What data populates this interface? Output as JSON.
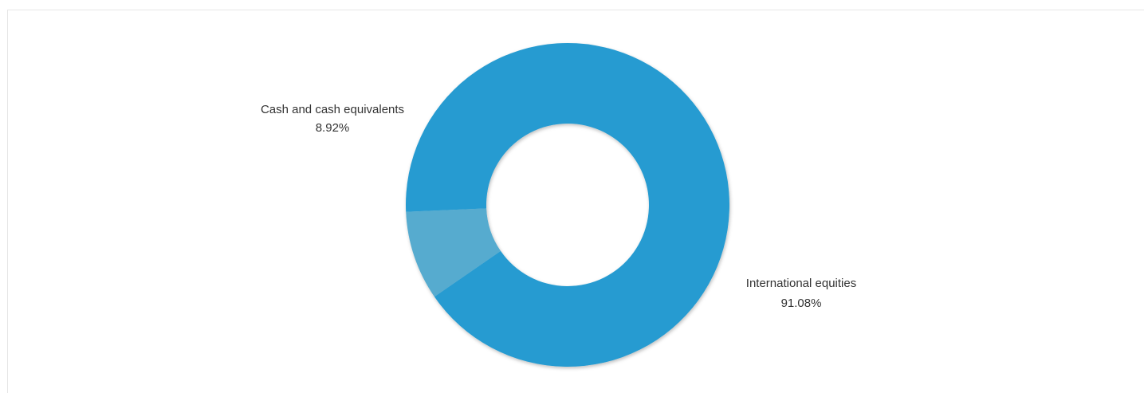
{
  "chart_data": {
    "type": "pie",
    "donut": true,
    "title": "",
    "legend": "none",
    "slices": [
      {
        "label": "International equities",
        "value": 91.08,
        "value_label": "91.08%",
        "color": "#259bd1"
      },
      {
        "label": "Cash and cash equivalents",
        "value": 8.92,
        "value_label": "8.92%",
        "color": "#56abcf"
      }
    ]
  }
}
